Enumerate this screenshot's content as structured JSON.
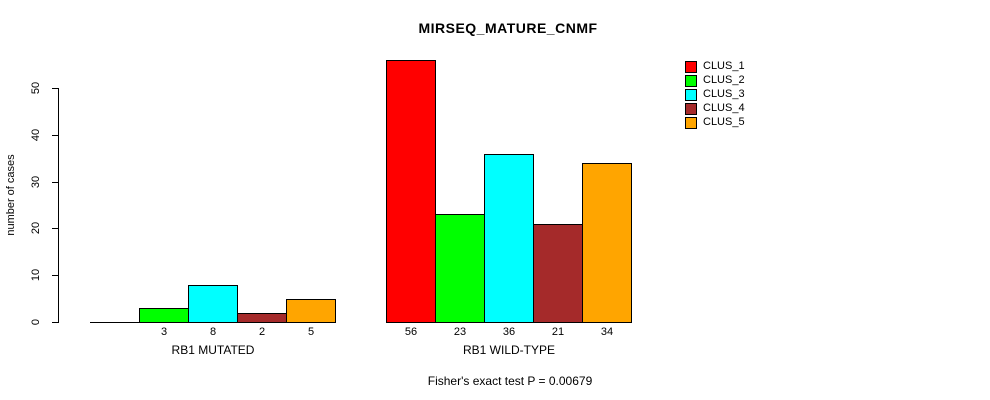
{
  "title": "MIRSEQ_MATURE_CNMF",
  "annotation": "Fisher's exact test P = 0.00679",
  "y_axis": {
    "label": "number of cases"
  },
  "legend": {
    "position": "right",
    "entries": [
      {
        "label": "CLUS_1",
        "color": "#FF0000"
      },
      {
        "label": "CLUS_2",
        "color": "#00FF00"
      },
      {
        "label": "CLUS_3",
        "color": "#00FFFF"
      },
      {
        "label": "CLUS_4",
        "color": "#A52A2A"
      },
      {
        "label": "CLUS_5",
        "color": "#FFA500"
      }
    ]
  },
  "chart_data": {
    "type": "bar",
    "title": "MIRSEQ_MATURE_CNMF",
    "categories": [
      "RB1 MUTATED",
      "RB1 WILD-TYPE"
    ],
    "series": [
      {
        "name": "CLUS_1",
        "color": "#FF0000",
        "values": [
          0,
          56
        ]
      },
      {
        "name": "CLUS_2",
        "color": "#00FF00",
        "values": [
          3,
          23
        ]
      },
      {
        "name": "CLUS_3",
        "color": "#00FFFF",
        "values": [
          8,
          36
        ]
      },
      {
        "name": "CLUS_4",
        "color": "#A52A2A",
        "values": [
          2,
          21
        ]
      },
      {
        "name": "CLUS_5",
        "color": "#FFA500",
        "values": [
          5,
          34
        ]
      }
    ],
    "ylabel": "number of cases",
    "ylim": [
      0,
      56
    ],
    "yticks": [
      0,
      10,
      20,
      30,
      40,
      50
    ],
    "bar_value_labels_shown": true,
    "zero_value_labels_hidden": true,
    "grid": false,
    "legend_position": "right",
    "annotation": "Fisher's exact test P = 0.00679"
  }
}
